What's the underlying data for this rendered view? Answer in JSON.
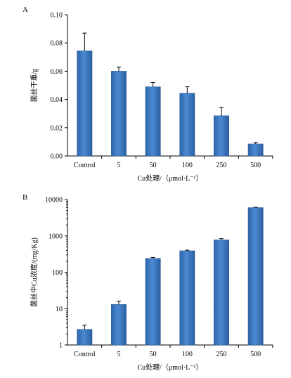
{
  "chart_data": [
    {
      "panel": "A",
      "type": "bar",
      "categories": [
        "Control",
        "5",
        "50",
        "100",
        "250",
        "500"
      ],
      "values": [
        0.0745,
        0.06,
        0.049,
        0.0445,
        0.0285,
        0.0085
      ],
      "errors": [
        0.0125,
        0.003,
        0.003,
        0.0045,
        0.006,
        0.001
      ],
      "xlabel": "Cu处理/（μmol·L⁻¹）",
      "ylabel": "菌丝干重/g",
      "ylim": [
        0,
        0.1
      ],
      "yticks": [
        "0.00",
        "0.02",
        "0.04",
        "0.06",
        "0.08",
        "0.10"
      ],
      "yscale": "linear",
      "bar_color": "#3A78C2",
      "grid": false
    },
    {
      "panel": "B",
      "type": "bar",
      "categories": [
        "Control",
        "5",
        "50",
        "100",
        "250",
        "500"
      ],
      "values": [
        2.7,
        13,
        240,
        390,
        780,
        6000
      ],
      "errors": [
        0.8,
        3,
        15,
        15,
        60,
        150
      ],
      "xlabel": "Cu处理/（μmol·L⁻¹）",
      "ylabel": "菌丝中Cu浓度/(mg/Kg)",
      "ylim": [
        1,
        10000
      ],
      "yticks": [
        "1",
        "10",
        "100",
        "1000",
        "10000"
      ],
      "yscale": "log",
      "bar_color": "#3A78C2",
      "grid": false
    }
  ]
}
